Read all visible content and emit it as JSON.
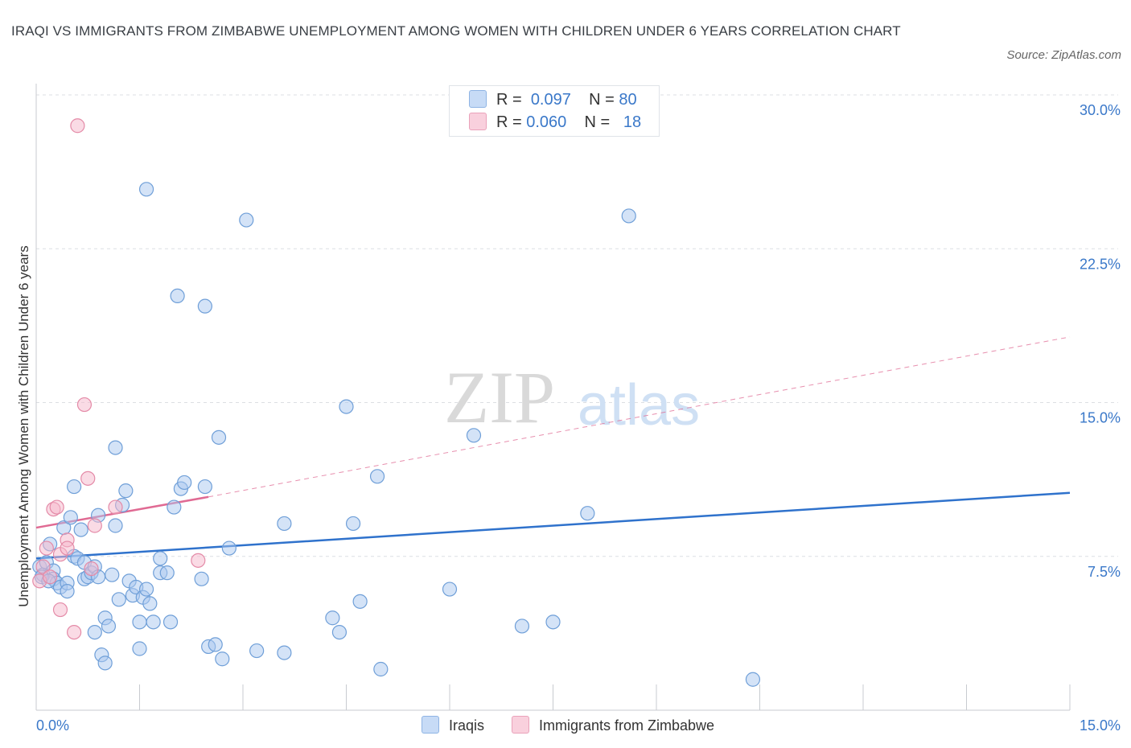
{
  "header": {
    "title": "IRAQI VS IMMIGRANTS FROM ZIMBABWE UNEMPLOYMENT AMONG WOMEN WITH CHILDREN UNDER 6 YEARS CORRELATION CHART",
    "source": "Source: ZipAtlas.com"
  },
  "legend": {
    "rows": [
      {
        "r_label": "R =",
        "r_value": "0.097",
        "n_label": "N =",
        "n_value": "80",
        "color": "#a9c8f0"
      },
      {
        "r_label": "R =",
        "r_value": "0.060",
        "n_label": "N =",
        "n_value": "18",
        "color": "#f5b8cb"
      }
    ],
    "bottom": [
      {
        "label": "Iraqis",
        "color": "#a9c8f0"
      },
      {
        "label": "Immigrants from Zimbabwe",
        "color": "#f5b8cb"
      }
    ]
  },
  "watermark": {
    "zip": "ZIP",
    "atlas": "atlas"
  },
  "chart_data": {
    "type": "scatter",
    "title": "IRAQI VS IMMIGRANTS FROM ZIMBABWE UNEMPLOYMENT AMONG WOMEN WITH CHILDREN UNDER 6 YEARS CORRELATION CHART",
    "xlabel": "",
    "ylabel": "Unemployment Among Women with Children Under 6 years",
    "xlim": [
      0,
      15
    ],
    "ylim": [
      0,
      30
    ],
    "x_ticks": [
      0,
      1.5,
      3,
      4.5,
      6,
      7.5,
      9,
      10.5,
      12,
      13.5,
      15
    ],
    "x_tick_labels": [
      {
        "value": 0,
        "label": "0.0%"
      },
      {
        "value": 15,
        "label": "15.0%"
      }
    ],
    "y_ticks": [
      {
        "value": 7.5,
        "label": "7.5%"
      },
      {
        "value": 15,
        "label": "15.0%"
      },
      {
        "value": 22.5,
        "label": "22.5%"
      },
      {
        "value": 30,
        "label": "30.0%"
      }
    ],
    "grid": "horizontal dashed",
    "legend_position": "top-center",
    "series": [
      {
        "name": "Iraqis",
        "color": "#a9c8f0",
        "stroke": "#6f9fd8",
        "trend": {
          "x": [
            0,
            15
          ],
          "y": [
            7.4,
            10.6
          ],
          "color": "#2f72cc",
          "style": "solid"
        },
        "points": [
          [
            0.05,
            7.0
          ],
          [
            0.1,
            6.6
          ],
          [
            0.15,
            7.2
          ],
          [
            0.2,
            8.1
          ],
          [
            0.25,
            6.8
          ],
          [
            0.25,
            6.4
          ],
          [
            0.3,
            6.2
          ],
          [
            0.35,
            6.0
          ],
          [
            0.4,
            8.9
          ],
          [
            0.45,
            6.2
          ],
          [
            0.45,
            5.8
          ],
          [
            0.5,
            9.4
          ],
          [
            0.55,
            10.9
          ],
          [
            0.55,
            7.5
          ],
          [
            0.6,
            7.4
          ],
          [
            0.65,
            8.8
          ],
          [
            0.7,
            7.2
          ],
          [
            0.7,
            6.4
          ],
          [
            0.75,
            6.5
          ],
          [
            0.8,
            6.7
          ],
          [
            0.85,
            3.8
          ],
          [
            0.85,
            7.0
          ],
          [
            0.9,
            9.5
          ],
          [
            0.9,
            6.5
          ],
          [
            0.95,
            2.7
          ],
          [
            1.0,
            2.3
          ],
          [
            1.0,
            4.5
          ],
          [
            1.05,
            4.1
          ],
          [
            1.1,
            6.6
          ],
          [
            1.15,
            9.0
          ],
          [
            1.15,
            12.8
          ],
          [
            1.2,
            5.4
          ],
          [
            1.25,
            10.0
          ],
          [
            1.3,
            10.7
          ],
          [
            1.35,
            6.3
          ],
          [
            1.4,
            5.6
          ],
          [
            1.45,
            6.0
          ],
          [
            1.5,
            4.3
          ],
          [
            1.5,
            3.0
          ],
          [
            1.55,
            5.5
          ],
          [
            1.6,
            5.9
          ],
          [
            1.6,
            25.4
          ],
          [
            1.65,
            5.2
          ],
          [
            1.7,
            4.3
          ],
          [
            1.8,
            7.4
          ],
          [
            1.8,
            6.7
          ],
          [
            1.9,
            6.7
          ],
          [
            1.95,
            4.3
          ],
          [
            2.0,
            9.9
          ],
          [
            2.05,
            20.2
          ],
          [
            2.1,
            10.8
          ],
          [
            2.15,
            11.1
          ],
          [
            2.45,
            19.7
          ],
          [
            2.4,
            6.4
          ],
          [
            2.45,
            10.9
          ],
          [
            2.5,
            3.1
          ],
          [
            2.6,
            3.2
          ],
          [
            2.65,
            13.3
          ],
          [
            2.7,
            2.5
          ],
          [
            2.8,
            7.9
          ],
          [
            3.05,
            23.9
          ],
          [
            3.2,
            2.9
          ],
          [
            3.6,
            2.8
          ],
          [
            3.6,
            9.1
          ],
          [
            4.3,
            4.5
          ],
          [
            4.4,
            3.8
          ],
          [
            4.5,
            14.8
          ],
          [
            4.6,
            9.1
          ],
          [
            4.7,
            5.3
          ],
          [
            4.95,
            11.4
          ],
          [
            5.0,
            2.0
          ],
          [
            6.0,
            5.9
          ],
          [
            6.35,
            13.4
          ],
          [
            7.05,
            4.1
          ],
          [
            7.5,
            4.3
          ],
          [
            8.0,
            9.6
          ],
          [
            8.6,
            24.1
          ],
          [
            10.4,
            1.5
          ],
          [
            0.08,
            6.5
          ],
          [
            0.18,
            6.3
          ]
        ]
      },
      {
        "name": "Immigrants from Zimbabwe",
        "color": "#f5b8cb",
        "stroke": "#e48aa7",
        "trend": {
          "x": [
            0,
            2.5
          ],
          "y": [
            8.9,
            10.4
          ],
          "extended_x": [
            2.5,
            15
          ],
          "extended_y": [
            10.4,
            18.2
          ],
          "color": "#e06a93",
          "style": "solid+dashed"
        },
        "points": [
          [
            0.05,
            6.3
          ],
          [
            0.1,
            7.0
          ],
          [
            0.15,
            7.9
          ],
          [
            0.2,
            6.5
          ],
          [
            0.25,
            9.8
          ],
          [
            0.3,
            9.9
          ],
          [
            0.35,
            7.6
          ],
          [
            0.35,
            4.9
          ],
          [
            0.45,
            8.3
          ],
          [
            0.45,
            7.9
          ],
          [
            0.55,
            3.8
          ],
          [
            0.6,
            28.5
          ],
          [
            0.7,
            14.9
          ],
          [
            0.75,
            11.3
          ],
          [
            0.8,
            6.9
          ],
          [
            0.85,
            9.0
          ],
          [
            1.15,
            9.9
          ],
          [
            2.35,
            7.3
          ]
        ]
      }
    ]
  }
}
